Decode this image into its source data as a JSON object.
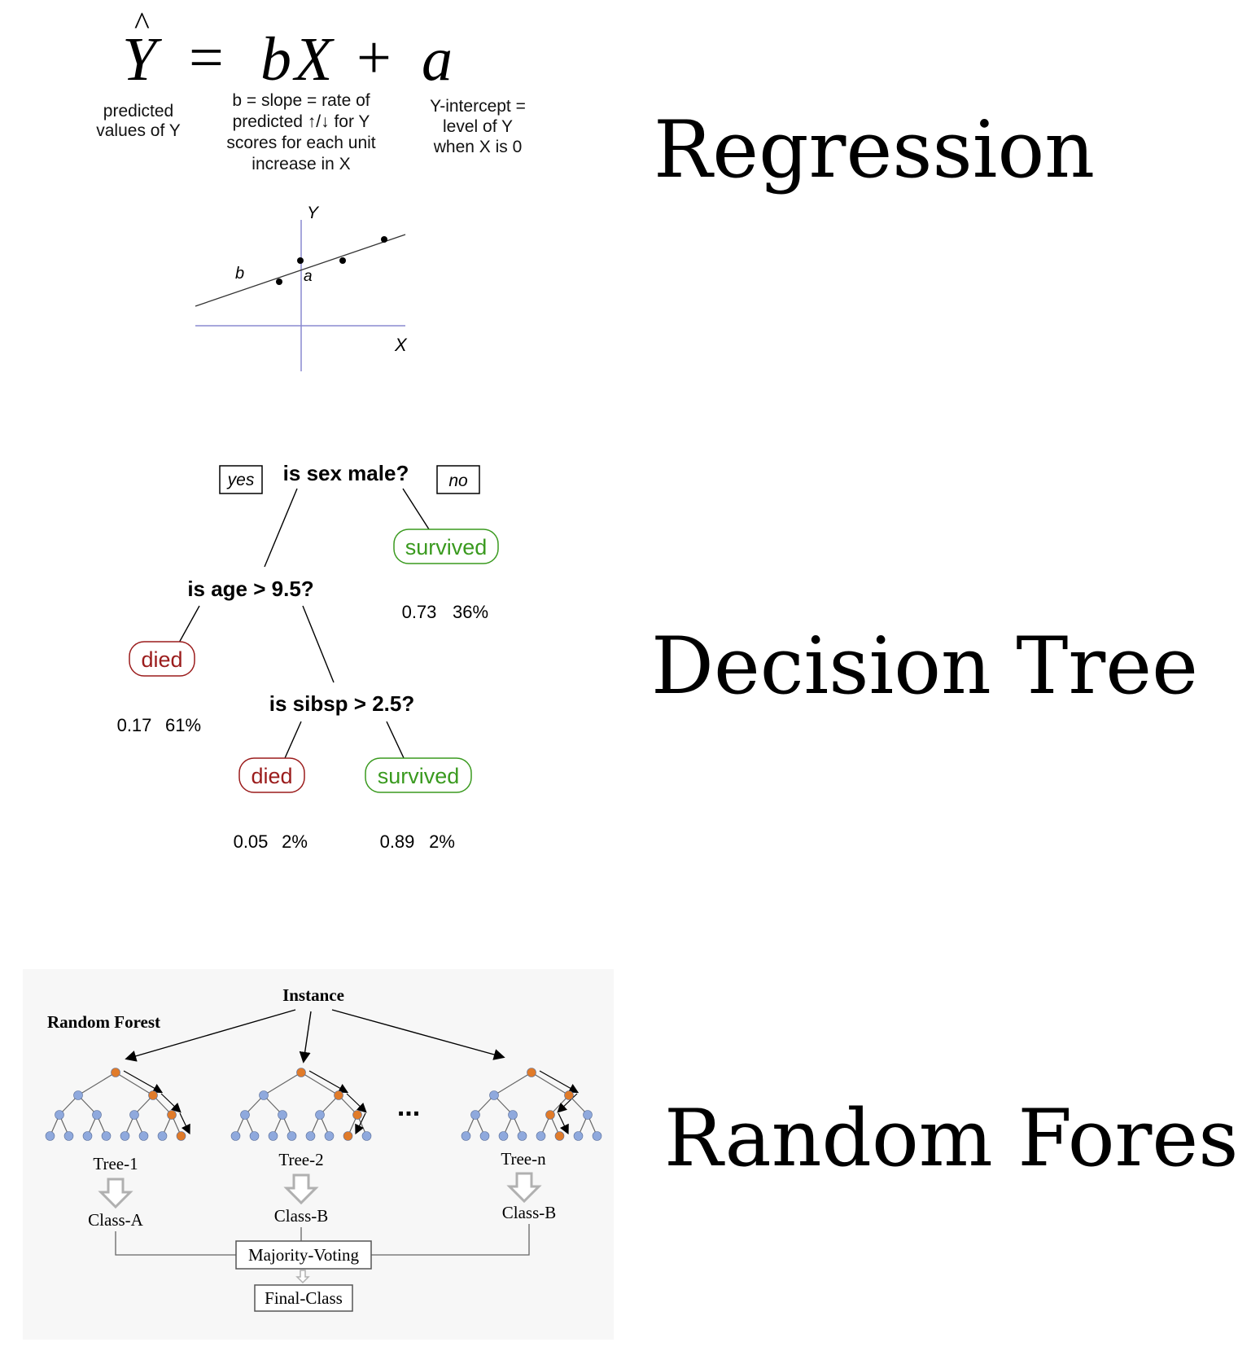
{
  "titles": {
    "regression": "Regression",
    "decision_tree": "Decision Tree",
    "random_forest": "Random Forest"
  },
  "regression": {
    "formula": {
      "y_hat": "Y",
      "hat": "^",
      "equals": "=",
      "slope": "b",
      "x": "X",
      "plus": "+",
      "intercept": "a"
    },
    "annotations": {
      "predicted": [
        "predicted",
        "values of Y"
      ],
      "slope": [
        "b = slope = rate of",
        "predicted ↑/↓ for Y",
        "scores for each unit",
        "increase in X"
      ],
      "intercept": [
        "Y-intercept =",
        "level of Y",
        "when X is 0"
      ]
    },
    "plot": {
      "y_axis": "Y",
      "x_axis": "X",
      "slope_label": "b",
      "intercept_label": "a"
    }
  },
  "decision_tree": {
    "root": "is sex male?",
    "yes": "yes",
    "no": "no",
    "age": "is age > 9.5?",
    "sibsp": "is sibsp > 2.5?",
    "leaves": [
      {
        "label": "survived",
        "prob": "0.73",
        "pct": "36%",
        "color": "#3a9a1f"
      },
      {
        "label": "died",
        "prob": "0.17",
        "pct": "61%",
        "color": "#9b1c1c"
      },
      {
        "label": "died",
        "prob": "0.05",
        "pct": "2%",
        "color": "#9b1c1c"
      },
      {
        "label": "survived",
        "prob": "0.89",
        "pct": "2%",
        "color": "#3a9a1f"
      }
    ]
  },
  "random_forest": {
    "title": "Random Forest",
    "instance": "Instance",
    "ellipsis": "...",
    "trees": [
      {
        "name": "Tree-1",
        "class": "Class-A"
      },
      {
        "name": "Tree-2",
        "class": "Class-B"
      },
      {
        "name": "Tree-n",
        "class": "Class-B"
      }
    ],
    "majority": "Majority-Voting",
    "final": "Final-Class",
    "colors": {
      "node_blue": "#8fa9dd",
      "node_orange": "#e07b2a",
      "arrow_gray": "#b0b0b0"
    }
  }
}
